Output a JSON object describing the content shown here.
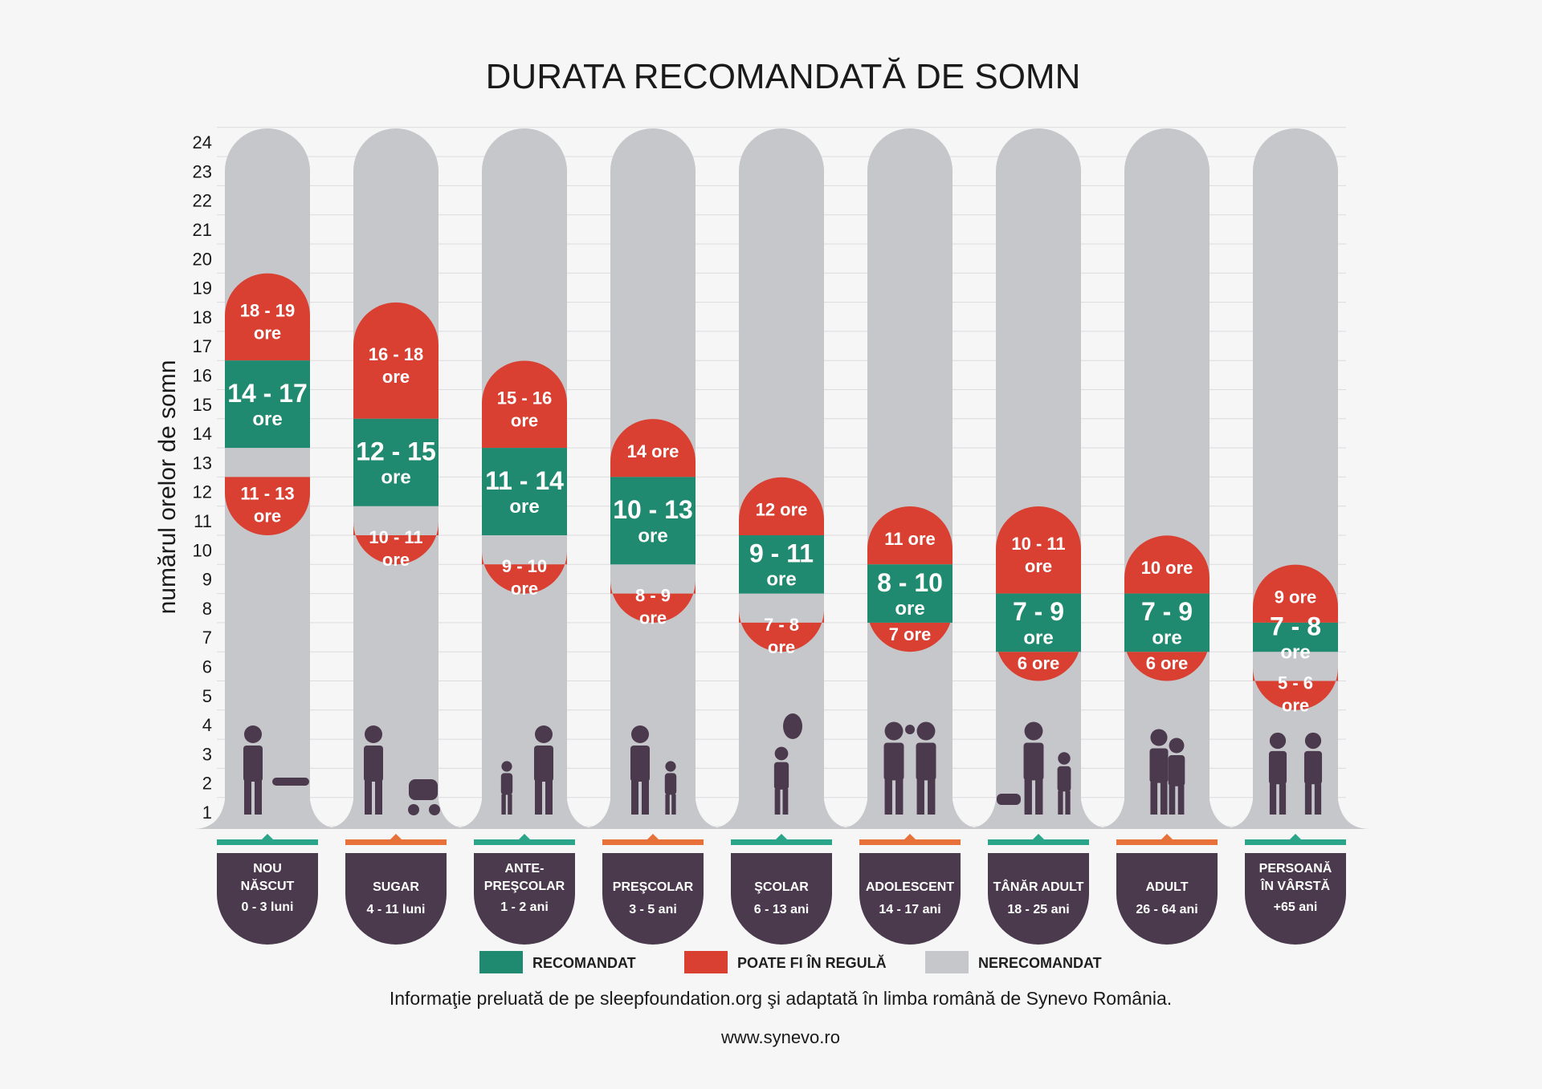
{
  "colors": {
    "recommended": "#1f8a6f",
    "may_be_ok": "#d94032",
    "not_recommended": "#c6c7cb",
    "category_box": "#4b3a4d",
    "accent_teal": "#2aa58a",
    "accent_orange": "#e8713a",
    "icon": "#4b3a4d"
  },
  "chart_data": {
    "type": "bar",
    "title": "DURATA RECOMANDATĂ DE SOMN",
    "ylabel": "numărul orelor de somn",
    "ylim": [
      0,
      24
    ],
    "yticks": [
      "1",
      "2",
      "3",
      "4",
      "5",
      "6",
      "7",
      "8",
      "9",
      "10",
      "11",
      "12",
      "13",
      "14",
      "15",
      "16",
      "17",
      "18",
      "19",
      "20",
      "21",
      "22",
      "23",
      "24"
    ],
    "series": [
      {
        "name": "RECOMANDAT",
        "values": [
          [
            14,
            17
          ],
          [
            12,
            15
          ],
          [
            11,
            14
          ],
          [
            10,
            13
          ],
          [
            9,
            11
          ],
          [
            8,
            10
          ],
          [
            7,
            9
          ],
          [
            7,
            9
          ],
          [
            7,
            8
          ]
        ],
        "labels": [
          [
            "14 - 17",
            "ore"
          ],
          [
            "12 - 15",
            "ore"
          ],
          [
            "11 - 14",
            "ore"
          ],
          [
            "10 - 13",
            "ore"
          ],
          [
            "9 - 11",
            "ore"
          ],
          [
            "8 - 10",
            "ore"
          ],
          [
            "7 - 9",
            "ore"
          ],
          [
            "7 - 9",
            "ore"
          ],
          [
            "7 - 8",
            "ore"
          ]
        ]
      },
      {
        "name": "POATE FI ÎN REGULĂ",
        "upper": [
          [
            17,
            19
          ],
          [
            15,
            18
          ],
          [
            14,
            16
          ],
          [
            13,
            14
          ],
          [
            11,
            12
          ],
          [
            10,
            11
          ],
          [
            9,
            11
          ],
          [
            9,
            10
          ],
          [
            8,
            9
          ]
        ],
        "lower": [
          [
            11,
            13
          ],
          [
            10,
            11
          ],
          [
            9,
            10
          ],
          [
            8,
            9
          ],
          [
            7,
            8
          ],
          [
            7,
            8
          ],
          [
            6,
            7
          ],
          [
            6,
            7
          ],
          [
            5,
            6
          ]
        ],
        "upper_labels": [
          [
            "18 - 19",
            "ore"
          ],
          [
            "16 - 18",
            "ore"
          ],
          [
            "15 - 16",
            "ore"
          ],
          [
            "14 ore"
          ],
          [
            "12 ore"
          ],
          [
            "11 ore"
          ],
          [
            "10 - 11",
            "ore"
          ],
          [
            "10 ore"
          ],
          [
            "9 ore"
          ]
        ],
        "lower_labels": [
          [
            "11 - 13",
            "ore"
          ],
          [
            "10 - 11",
            "ore"
          ],
          [
            "9 - 10",
            "ore"
          ],
          [
            "8 - 9",
            "ore"
          ],
          [
            "7 - 8",
            "ore"
          ],
          [
            "7 ore"
          ],
          [
            "6 ore"
          ],
          [
            "6 ore"
          ],
          [
            "5 - 6",
            "ore"
          ]
        ]
      },
      {
        "name": "NERECOMANDAT"
      }
    ],
    "categories": [
      {
        "lines": [
          "NOU",
          "NĂSCUT",
          "0 - 3 luni"
        ],
        "accent": "teal",
        "icon": "parent-changing-baby-icon"
      },
      {
        "lines": [
          "SUGAR",
          "4 - 11 luni"
        ],
        "accent": "orange",
        "icon": "stroller-icon"
      },
      {
        "lines": [
          "ANTE-",
          "PREŞCOLAR",
          "1 - 2 ani"
        ],
        "accent": "teal",
        "icon": "feeding-toddler-icon"
      },
      {
        "lines": [
          "PREŞCOLAR",
          "3 - 5 ani"
        ],
        "accent": "orange",
        "icon": "mother-child-icon"
      },
      {
        "lines": [
          "ŞCOLAR",
          "6 - 13 ani"
        ],
        "accent": "teal",
        "icon": "child-balloon-icon"
      },
      {
        "lines": [
          "ADOLESCENT",
          "14 - 17 ani"
        ],
        "accent": "orange",
        "icon": "teen-couple-icon"
      },
      {
        "lines": [
          "TÂNĂR ADULT",
          "18 - 25 ani"
        ],
        "accent": "teal",
        "icon": "young-family-icon"
      },
      {
        "lines": [
          "ADULT",
          "26 - 64 ani"
        ],
        "accent": "orange",
        "icon": "adult-couple-icon"
      },
      {
        "lines": [
          "PERSOANĂ",
          "ÎN VÂRSTĂ",
          "+65 ani"
        ],
        "accent": "teal",
        "icon": "elderly-couple-icon"
      }
    ],
    "legend": [
      {
        "label": "RECOMANDAT",
        "color": "#1f8a6f"
      },
      {
        "label": "POATE FI ÎN REGULĂ",
        "color": "#d94032"
      },
      {
        "label": "NERECOMANDAT",
        "color": "#c6c7cb"
      }
    ],
    "legend_position": "bottom",
    "grid": true
  },
  "footer": {
    "source": "Informaţie preluată de pe sleepfoundation.org şi adaptată în limba română de Synevo România.",
    "url": "www.synevo.ro"
  }
}
